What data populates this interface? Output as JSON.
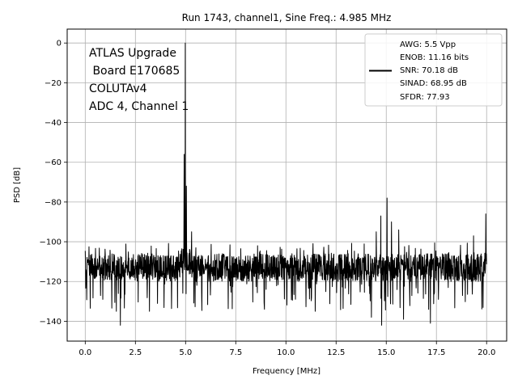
{
  "chart_data": {
    "type": "line",
    "title": "Run 1743, channel1, Sine Freq.: 4.985 MHz",
    "xlabel": "Frequency [MHz]",
    "ylabel": "PSD [dB]",
    "xlim": [
      -0.9,
      21.0
    ],
    "ylim": [
      -150,
      7
    ],
    "xticks": [
      0.0,
      2.5,
      5.0,
      7.5,
      10.0,
      12.5,
      15.0,
      17.5,
      20.0
    ],
    "xtick_labels": [
      "0.0",
      "2.5",
      "5.0",
      "7.5",
      "10.0",
      "12.5",
      "15.0",
      "17.5",
      "20.0"
    ],
    "yticks": [
      0,
      -20,
      -40,
      -60,
      -80,
      -100,
      -120,
      -140
    ],
    "ytick_labels": [
      "0",
      "−20",
      "−40",
      "−60",
      "−80",
      "−100",
      "−120",
      "−140"
    ],
    "grid": true,
    "annotation_lines": [
      "ATLAS Upgrade",
      " Board E170685",
      "COLUTAv4",
      "ADC 4, Channel 1"
    ],
    "legend": {
      "placement": "top-right",
      "lines": [
        "AWG: 5.5 Vpp",
        "ENOB: 11.16 bits",
        "SNR: 70.18 dB",
        "SINAD: 68.95 dB",
        "SFDR: 77.93"
      ]
    },
    "series": [
      {
        "color": "#000000",
        "x_range": [
          0.0,
          20.0
        ],
        "noise_floor_db": -113,
        "noise_min_db": -142,
        "noise_max_db": -98,
        "peaks": [
          {
            "x": 4.985,
            "y": 0
          },
          {
            "x": 4.93,
            "y": -56
          },
          {
            "x": 5.04,
            "y": -72
          },
          {
            "x": 15.04,
            "y": -78
          },
          {
            "x": 14.73,
            "y": -87
          },
          {
            "x": 15.26,
            "y": -90
          },
          {
            "x": 19.96,
            "y": -86
          },
          {
            "x": 15.62,
            "y": -94
          },
          {
            "x": 14.5,
            "y": -95
          },
          {
            "x": 19.35,
            "y": -97
          },
          {
            "x": 5.3,
            "y": -95
          }
        ],
        "dips": [
          {
            "x": 1.75,
            "y": -142
          },
          {
            "x": 14.77,
            "y": -142
          },
          {
            "x": 17.2,
            "y": -141
          },
          {
            "x": 15.86,
            "y": -139
          },
          {
            "x": 14.26,
            "y": -138
          },
          {
            "x": 11.46,
            "y": -135
          },
          {
            "x": 1.55,
            "y": -135
          },
          {
            "x": 3.2,
            "y": -135
          },
          {
            "x": 8.93,
            "y": -134
          }
        ]
      }
    ]
  }
}
